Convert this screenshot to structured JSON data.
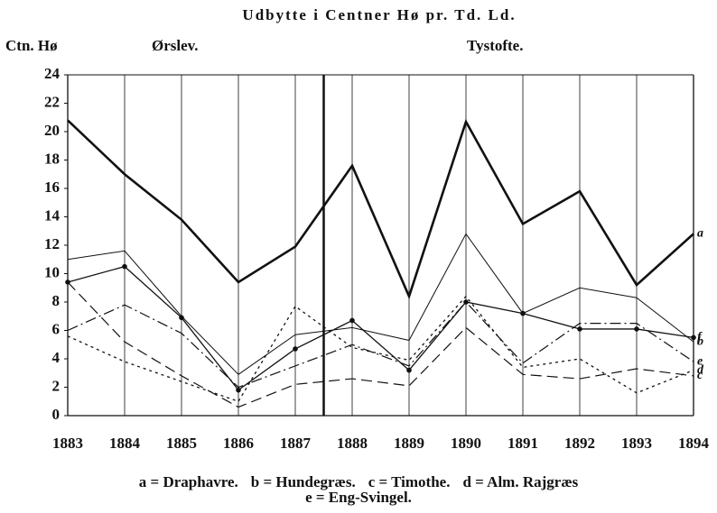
{
  "chart_data": {
    "type": "line",
    "title": "Udbytte i Centner Hø pr. Td. Ld.",
    "ylabel": "Ctn. Hø",
    "sections": [
      "Ørslev.",
      "Tystofte."
    ],
    "divider_x": 1887.5,
    "x": [
      1883,
      1884,
      1885,
      1886,
      1887,
      1888,
      1889,
      1890,
      1891,
      1892,
      1893,
      1894
    ],
    "xlim": [
      1883,
      1894
    ],
    "xticks": [
      1883,
      1884,
      1885,
      1886,
      1887,
      1888,
      1889,
      1890,
      1891,
      1892,
      1893,
      1894
    ],
    "ylim": [
      0,
      24
    ],
    "yticks": [
      0,
      2,
      4,
      6,
      8,
      10,
      12,
      14,
      16,
      18,
      20,
      22,
      24
    ],
    "grid": "vertical",
    "series": [
      {
        "name": "a",
        "color": "#111",
        "style": "solid",
        "width": 2.6,
        "markers": false,
        "values": [
          20.8,
          17,
          13.8,
          9.4,
          11.9,
          17.6,
          8.4,
          20.7,
          13.5,
          15.8,
          9.2,
          12.8
        ]
      },
      {
        "name": "f",
        "color": "#111",
        "style": "solid",
        "width": 1.3,
        "markers": true,
        "values": [
          9.4,
          10.5,
          6.9,
          1.8,
          4.7,
          6.7,
          3.2,
          8,
          7.2,
          6.1,
          6.1,
          5.5
        ]
      },
      {
        "name": "b",
        "color": "#111",
        "style": "solid",
        "width": 1,
        "markers": false,
        "values": [
          11,
          11.6,
          7,
          2.9,
          5.7,
          6.2,
          5.3,
          12.8,
          7.2,
          9,
          8.3,
          5.2
        ]
      },
      {
        "name": "e",
        "color": "#111",
        "style": "dashdot",
        "width": 1.2,
        "markers": false,
        "values": [
          6,
          7.8,
          5.8,
          2,
          3.5,
          5,
          3.5,
          8,
          3.7,
          6.5,
          6.5,
          3.8
        ]
      },
      {
        "name": "d",
        "color": "#111",
        "style": "dotted",
        "width": 1.3,
        "markers": false,
        "values": [
          5.6,
          3.8,
          2.4,
          1,
          7.7,
          4.8,
          3.9,
          8.4,
          3.4,
          4,
          1.6,
          3.2
        ]
      },
      {
        "name": "c",
        "color": "#111",
        "style": "dashed",
        "width": 1.2,
        "markers": false,
        "values": [
          9.4,
          5.2,
          2.8,
          0.6,
          2.2,
          2.6,
          2.1,
          6.2,
          2.9,
          2.6,
          3.3,
          2.8
        ]
      }
    ],
    "legend": [
      "a = Draphavre.",
      "b = Hundegræs.",
      "c = Timothe.",
      "d = Alm. Rajgræs",
      "e = Eng-Svingel."
    ]
  }
}
